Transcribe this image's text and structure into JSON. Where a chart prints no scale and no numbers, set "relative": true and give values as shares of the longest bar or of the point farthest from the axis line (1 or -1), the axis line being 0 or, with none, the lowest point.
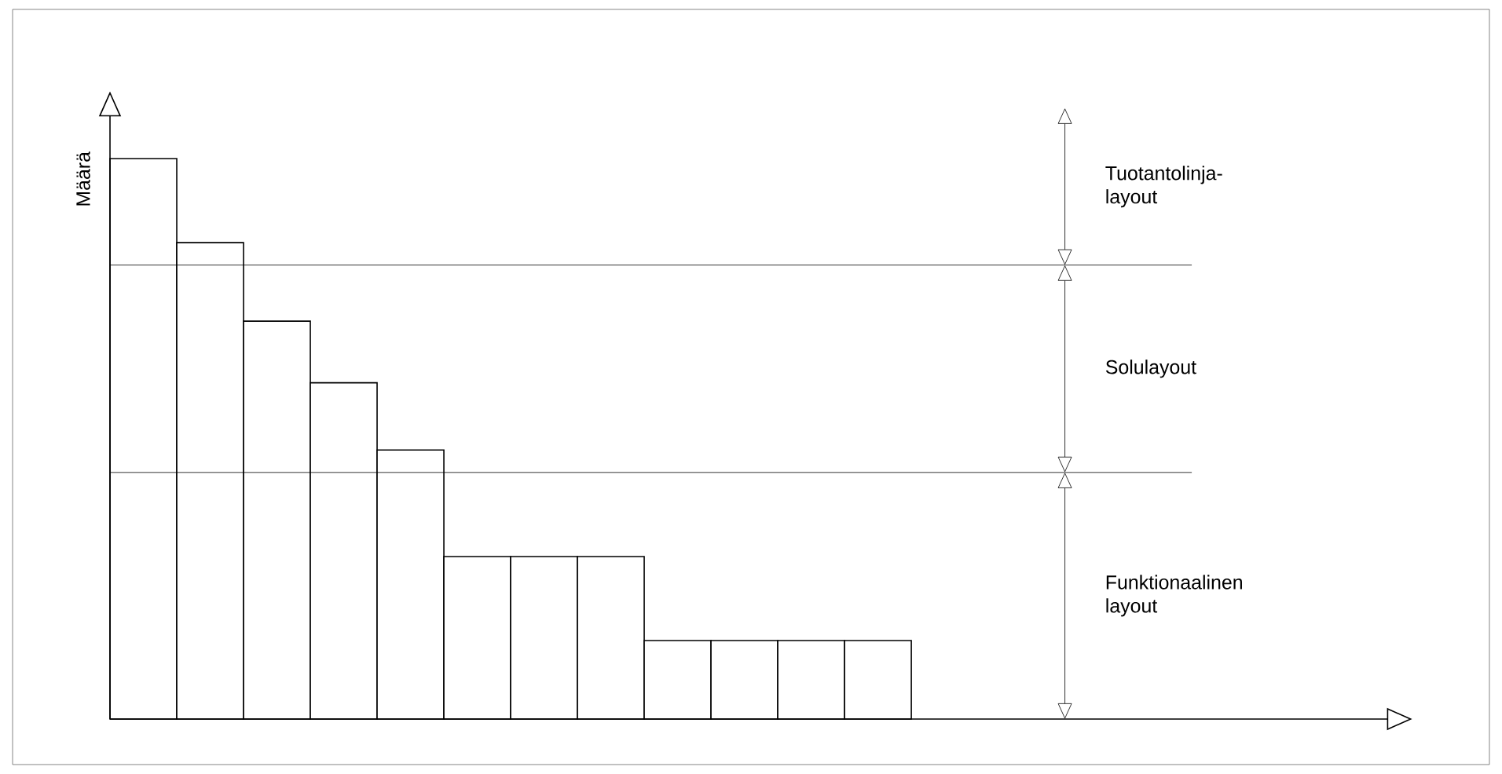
{
  "chart_data": {
    "type": "bar",
    "relative": true,
    "ylabel": "Määrä",
    "categories": [
      null,
      null,
      null,
      null,
      null,
      null,
      null,
      null,
      null,
      null,
      null,
      null
    ],
    "values": [
      1,
      0.85,
      0.71,
      0.6,
      0.48,
      0.29,
      0.29,
      0.29,
      0.14,
      0.14,
      0.14,
      0.14
    ],
    "color": "#ffffff",
    "ref_lines": [
      {
        "axis": "y",
        "value": 0.81
      },
      {
        "axis": "y",
        "value": 0.44
      }
    ],
    "annotations": [
      "Tuotantolinja-layout",
      "Solulayout",
      "Funktionaalinen layout"
    ]
  }
}
